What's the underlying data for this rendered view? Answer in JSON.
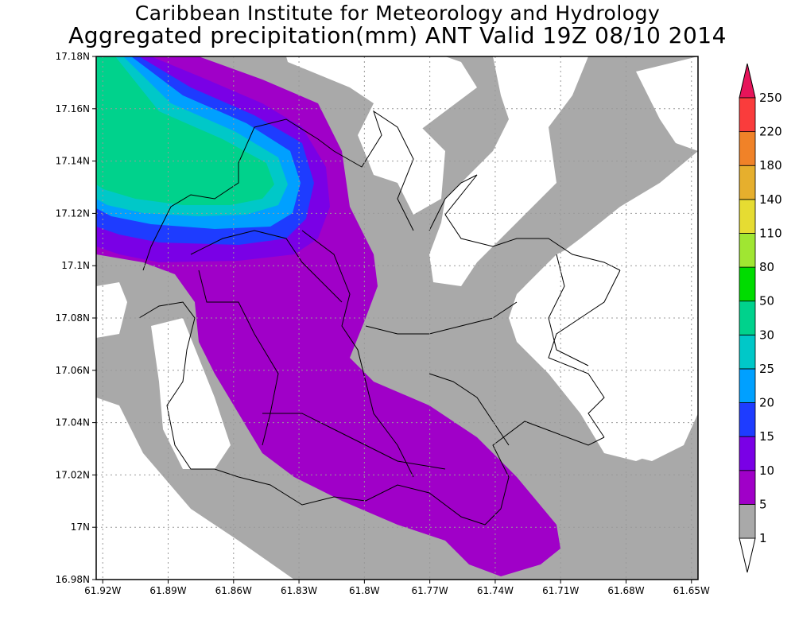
{
  "header": {
    "line1": "Caribbean Institute for Meteorology and Hydrology",
    "line2": "Aggregated precipitation(mm) ANT Valid 19Z 08/10 2014"
  },
  "axes": {
    "lat_labels": [
      "17.18N",
      "17.16N",
      "17.14N",
      "17.12N",
      "17.1N",
      "17.08N",
      "17.06N",
      "17.04N",
      "17.02N",
      "17N",
      "16.98N"
    ],
    "lon_labels": [
      "61.92W",
      "61.89W",
      "61.86W",
      "61.83W",
      "61.8W",
      "61.77W",
      "61.74W",
      "61.71W",
      "61.68W",
      "61.65W"
    ],
    "lat_range": [
      16.98,
      17.18
    ],
    "lon_range": [
      -61.923,
      -61.647
    ],
    "grid": true
  },
  "colorbar": {
    "levels": [
      "1",
      "5",
      "10",
      "15",
      "20",
      "25",
      "30",
      "50",
      "80",
      "110",
      "140",
      "180",
      "220",
      "250"
    ],
    "colors": [
      "#ffffff",
      "#a9a9a9",
      "#a000c8",
      "#7a00e6",
      "#1e3cff",
      "#00a0ff",
      "#00c8c8",
      "#00d28c",
      "#00dc00",
      "#a0e632",
      "#e6dc32",
      "#e6af2d",
      "#f08228",
      "#fa3c3c",
      "#e6145a"
    ]
  },
  "fields": {
    "background": "#ffffff",
    "gray_1_5": "#a9a9a9",
    "purple_5_10": "#a000c8",
    "violet_10_15": "#7a00e6",
    "blue_15_20": "#1e3cff",
    "sky_20_25": "#00a0ff",
    "cyan_25_30": "#00c8c8",
    "green_30_50": "#00d28c"
  }
}
